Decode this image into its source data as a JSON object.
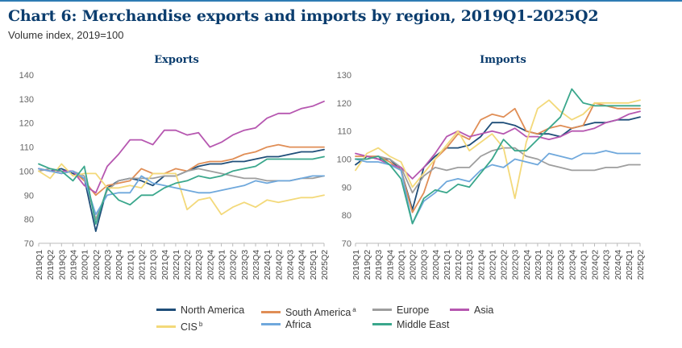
{
  "title": "Chart 6: Merchandise exports and imports by region, 2019Q1-2025Q2",
  "subtitle": "Volume index, 2019=100",
  "colors": {
    "North America": "#1f4e79",
    "South America": "#e08e56",
    "Europe": "#9e9e9e",
    "Asia": "#b657b0",
    "CIS": "#f3d97a",
    "Africa": "#6fa8dc",
    "Middle East": "#3aa78c",
    "axis": "#bbbbbb"
  },
  "legend": [
    {
      "name": "North America",
      "label": "North America",
      "sup": ""
    },
    {
      "name": "South America",
      "label": "South America",
      "sup": "a"
    },
    {
      "name": "Europe",
      "label": "Europe",
      "sup": ""
    },
    {
      "name": "Asia",
      "label": "Asia",
      "sup": ""
    },
    {
      "name": "CIS",
      "label": "CIS",
      "sup": "b"
    },
    {
      "name": "Africa",
      "label": "Africa",
      "sup": ""
    },
    {
      "name": "Middle East",
      "label": "Middle East",
      "sup": ""
    }
  ],
  "chart_data": [
    {
      "type": "line",
      "title": "Exports",
      "ylim": [
        70,
        140
      ],
      "yticks": [
        70,
        80,
        90,
        100,
        110,
        120,
        130,
        140
      ],
      "categories": [
        "2019Q1",
        "2019Q2",
        "2019Q3",
        "2019Q4",
        "2020Q1",
        "2020Q2",
        "2020Q3",
        "2020Q4",
        "2021Q1",
        "2021Q2",
        "2021Q3",
        "2021Q4",
        "2022Q1",
        "2022Q2",
        "2022Q3",
        "2022Q4",
        "2023Q1",
        "2023Q2",
        "2023Q3",
        "2023Q4",
        "2024Q1",
        "2024Q2",
        "2024Q3",
        "2024Q4",
        "2025Q1",
        "2025Q2"
      ],
      "series": [
        {
          "name": "North America",
          "values": [
            101,
            100,
            101,
            99,
            97,
            75,
            93,
            96,
            97,
            96,
            94,
            98,
            98,
            100,
            102,
            103,
            103,
            104,
            104,
            105,
            106,
            106,
            107,
            108,
            108,
            109
          ]
        },
        {
          "name": "South America",
          "values": [
            101,
            100,
            99,
            100,
            96,
            90,
            94,
            95,
            96,
            101,
            99,
            99,
            101,
            100,
            103,
            104,
            104,
            105,
            107,
            108,
            110,
            111,
            110,
            110,
            110,
            110
          ]
        },
        {
          "name": "Europe",
          "values": [
            100,
            101,
            100,
            100,
            98,
            80,
            92,
            96,
            97,
            97,
            97,
            98,
            98,
            100,
            101,
            100,
            99,
            98,
            97,
            97,
            96,
            96,
            96,
            97,
            97,
            98
          ]
        },
        {
          "name": "Asia",
          "values": [
            101,
            100,
            100,
            100,
            94,
            91,
            102,
            107,
            113,
            113,
            111,
            117,
            117,
            115,
            116,
            110,
            112,
            115,
            117,
            118,
            122,
            124,
            124,
            126,
            127,
            129
          ]
        },
        {
          "name": "CIS",
          "values": [
            100,
            97,
            103,
            98,
            99,
            99,
            93,
            93,
            94,
            93,
            99,
            99,
            99,
            84,
            88,
            89,
            82,
            85,
            87,
            85,
            88,
            87,
            88,
            89,
            89,
            90
          ]
        },
        {
          "name": "Africa",
          "values": [
            101,
            100,
            99,
            100,
            97,
            82,
            90,
            91,
            91,
            98,
            95,
            94,
            93,
            92,
            91,
            91,
            92,
            93,
            94,
            96,
            95,
            96,
            96,
            97,
            98,
            98
          ]
        },
        {
          "name": "Middle East",
          "values": [
            103,
            101,
            100,
            96,
            102,
            78,
            93,
            88,
            86,
            90,
            90,
            93,
            95,
            96,
            98,
            97,
            98,
            100,
            101,
            102,
            105,
            105,
            105,
            105,
            105,
            106
          ]
        }
      ]
    },
    {
      "type": "line",
      "title": "Imports",
      "ylim": [
        70,
        130
      ],
      "yticks": [
        70,
        80,
        90,
        100,
        110,
        120,
        130
      ],
      "categories": [
        "2019Q1",
        "2019Q2",
        "2019Q3",
        "2019Q4",
        "2020Q1",
        "2020Q2",
        "2020Q3",
        "2020Q4",
        "2021Q1",
        "2021Q2",
        "2021Q3",
        "2021Q4",
        "2022Q1",
        "2022Q2",
        "2022Q3",
        "2022Q4",
        "2023Q1",
        "2023Q2",
        "2023Q3",
        "2023Q4",
        "2024Q1",
        "2024Q2",
        "2024Q3",
        "2024Q4",
        "2025Q1",
        "2025Q2"
      ],
      "series": [
        {
          "name": "North America",
          "values": [
            98,
            101,
            100,
            100,
            96,
            82,
            97,
            101,
            104,
            104,
            105,
            108,
            113,
            113,
            112,
            110,
            109,
            109,
            108,
            111,
            112,
            113,
            113,
            114,
            114,
            115
          ]
        },
        {
          "name": "South America",
          "values": [
            101,
            101,
            101,
            99,
            96,
            81,
            88,
            100,
            104,
            109,
            107,
            114,
            116,
            115,
            118,
            110,
            109,
            111,
            112,
            111,
            112,
            120,
            119,
            118,
            118,
            118
          ]
        },
        {
          "name": "Europe",
          "values": [
            100,
            100,
            101,
            100,
            97,
            88,
            94,
            97,
            96,
            97,
            97,
            101,
            103,
            104,
            104,
            101,
            100,
            98,
            97,
            96,
            96,
            96,
            97,
            97,
            98,
            98
          ]
        },
        {
          "name": "Asia",
          "values": [
            102,
            101,
            100,
            98,
            97,
            93,
            97,
            102,
            108,
            110,
            108,
            109,
            110,
            109,
            111,
            108,
            108,
            107,
            108,
            110,
            110,
            111,
            113,
            114,
            116,
            117
          ]
        },
        {
          "name": "CIS",
          "values": [
            96,
            102,
            104,
            101,
            99,
            90,
            95,
            100,
            105,
            110,
            103,
            106,
            109,
            104,
            86,
            106,
            118,
            121,
            117,
            114,
            116,
            120,
            120,
            120,
            120,
            121
          ]
        },
        {
          "name": "Africa",
          "values": [
            100,
            99,
            99,
            98,
            96,
            77,
            85,
            88,
            92,
            93,
            92,
            96,
            98,
            97,
            100,
            99,
            98,
            102,
            101,
            100,
            102,
            102,
            103,
            102,
            102,
            102
          ]
        },
        {
          "name": "Middle East",
          "values": [
            100,
            100,
            101,
            98,
            93,
            77,
            86,
            89,
            88,
            91,
            90,
            95,
            100,
            107,
            103,
            103,
            107,
            111,
            115,
            125,
            120,
            119,
            119,
            119,
            119,
            119
          ]
        }
      ]
    }
  ]
}
